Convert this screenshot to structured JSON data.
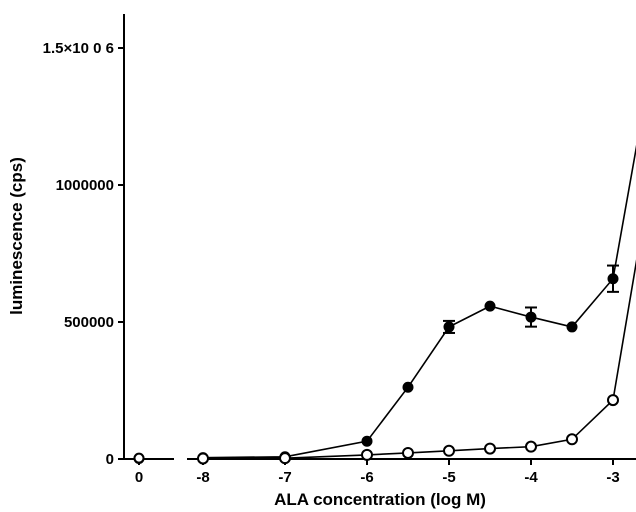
{
  "chart_data": {
    "type": "line",
    "title": "",
    "xlabel": "ALA concentration (log M)",
    "ylabel": "luminescence (cps)",
    "x_axis_break": true,
    "xlim": [
      -8.3,
      -2.5
    ],
    "ylim": [
      0,
      1800000
    ],
    "x_ticks": [
      0,
      -8,
      -7,
      -6,
      -5,
      -4,
      -3
    ],
    "x_tick_labels": [
      "0",
      "-8",
      "-7",
      "-6",
      "-5",
      "-4",
      "-3"
    ],
    "y_ticks": [
      0,
      500000,
      1000000,
      1500000
    ],
    "y_tick_labels": [
      "0",
      "500000",
      "1000000",
      "1.5×10 0 6"
    ],
    "grid": false,
    "series": [
      {
        "marker": "filled-circle",
        "zero_value": 2000,
        "x": [
          -8,
          -7,
          -6,
          -5.5,
          -5,
          -4.5,
          -4,
          -3.5,
          -3,
          -2.5
        ],
        "y": [
          5000,
          8000,
          65000,
          262000,
          482000,
          558000,
          518000,
          482000,
          658000,
          1500000
        ],
        "error": [
          0,
          0,
          0,
          0,
          22000,
          0,
          35000,
          0,
          48000,
          0
        ]
      },
      {
        "marker": "open-circle",
        "zero_value": 3000,
        "x": [
          -8,
          -7,
          -6,
          -5.5,
          -5,
          -4.5,
          -4,
          -3.5,
          -3,
          -2.5
        ],
        "y": [
          2000,
          3000,
          15000,
          22000,
          30000,
          38000,
          45000,
          72000,
          215000,
          1100000
        ],
        "error": [
          0,
          0,
          0,
          0,
          0,
          0,
          0,
          0,
          0,
          0
        ]
      }
    ]
  }
}
